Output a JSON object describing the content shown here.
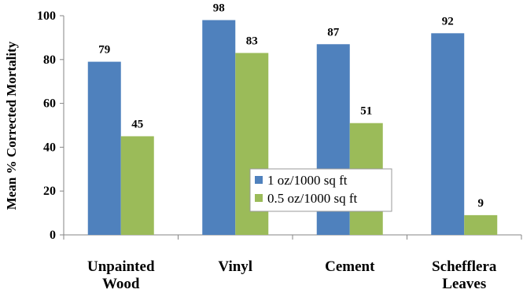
{
  "chart_data": {
    "type": "bar",
    "categories": [
      [
        "Unpainted",
        "Wood"
      ],
      [
        "Vinyl"
      ],
      [
        "Cement"
      ],
      [
        "Schefflera",
        "Leaves"
      ]
    ],
    "series": [
      {
        "name": "1 oz/1000 sq ft",
        "values": [
          79,
          98,
          87,
          92
        ],
        "color": "#4F81BD"
      },
      {
        "name": "0.5 oz/1000 sq ft",
        "values": [
          45,
          83,
          51,
          9
        ],
        "color": "#9BBB59"
      }
    ],
    "xlabel": "",
    "ylabel": "Mean % Corrected Mortality",
    "ylim": [
      0,
      100
    ],
    "yticks": [
      0,
      20,
      40,
      60,
      80,
      100
    ],
    "legend_position": "center-right",
    "grid": false
  }
}
